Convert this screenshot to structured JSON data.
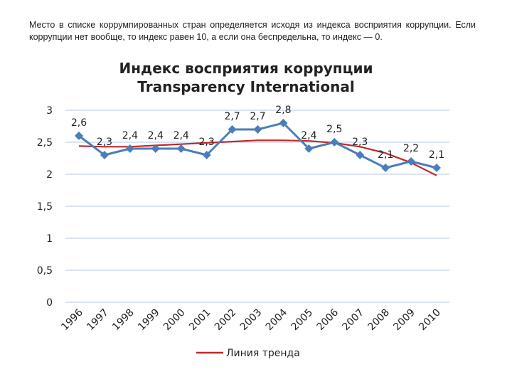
{
  "intro_text": "Место в списке коррумпированных стран определяется исходя из индекса восприятия коррупции. Если коррупции нет вообще, то индекс равен 10, а если она беспредельна, то индекс — 0.",
  "chart_data": {
    "type": "line",
    "title_line1": "Индекс восприятия коррупции",
    "title_line2": "Transparency International",
    "categories": [
      "1996",
      "1997",
      "1998",
      "1999",
      "2000",
      "2001",
      "2002",
      "2003",
      "2004",
      "2005",
      "2006",
      "2007",
      "2008",
      "2009",
      "2010"
    ],
    "series": [
      {
        "values": [
          2.6,
          2.3,
          2.4,
          2.4,
          2.4,
          2.3,
          2.7,
          2.7,
          2.8,
          2.4,
          2.5,
          2.3,
          2.1,
          2.2,
          2.1
        ],
        "labels": [
          "2,6",
          "2,3",
          "2,4",
          "2,4",
          "2,4",
          "2,3",
          "2,7",
          "2,7",
          "2,8",
          "2,4",
          "2,5",
          "2,3",
          "2,1",
          "2,2",
          "2,1"
        ],
        "color": "#4a7ebb",
        "marker": "diamond"
      },
      {
        "name": "Линия тренда",
        "values": [
          2.44,
          2.43,
          2.43,
          2.45,
          2.47,
          2.49,
          2.51,
          2.53,
          2.53,
          2.52,
          2.49,
          2.43,
          2.33,
          2.18,
          1.98
        ],
        "color": "#c0282d",
        "trend": true
      }
    ],
    "yticks": [
      "0",
      "0,5",
      "1",
      "1,5",
      "2",
      "2,5",
      "3"
    ],
    "ylim": [
      0,
      3
    ],
    "grid": true,
    "legend_position": "bottom"
  }
}
